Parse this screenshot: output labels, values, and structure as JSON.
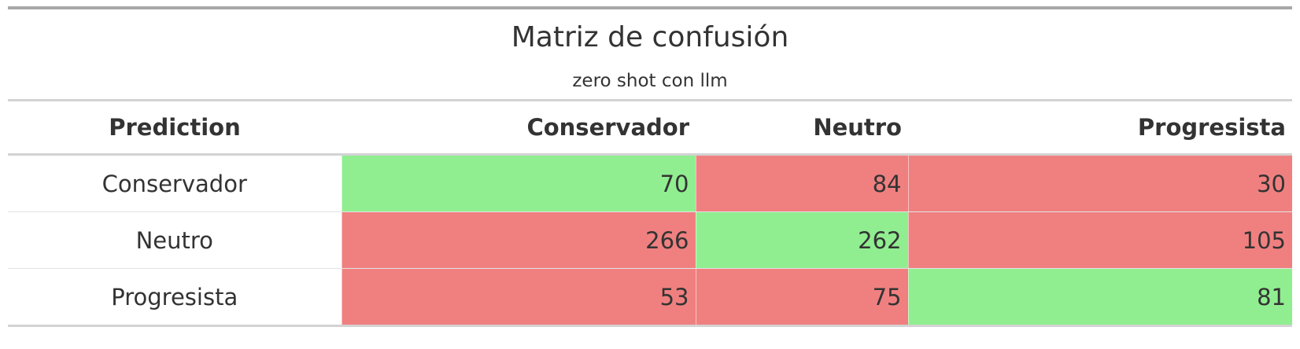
{
  "chart_data": {
    "type": "table",
    "title": "Matriz de confusión",
    "subtitle": "zero shot con llm",
    "columns": [
      "Prediction",
      "Conservador",
      "Neutro",
      "Progresista"
    ],
    "rows": [
      {
        "label": "Conservador",
        "values": [
          70,
          84,
          30
        ]
      },
      {
        "label": "Neutro",
        "values": [
          266,
          262,
          105
        ]
      },
      {
        "label": "Progresista",
        "values": [
          53,
          75,
          81
        ]
      }
    ],
    "colors": {
      "correct": "#90ee90",
      "incorrect": "#f08080"
    }
  }
}
